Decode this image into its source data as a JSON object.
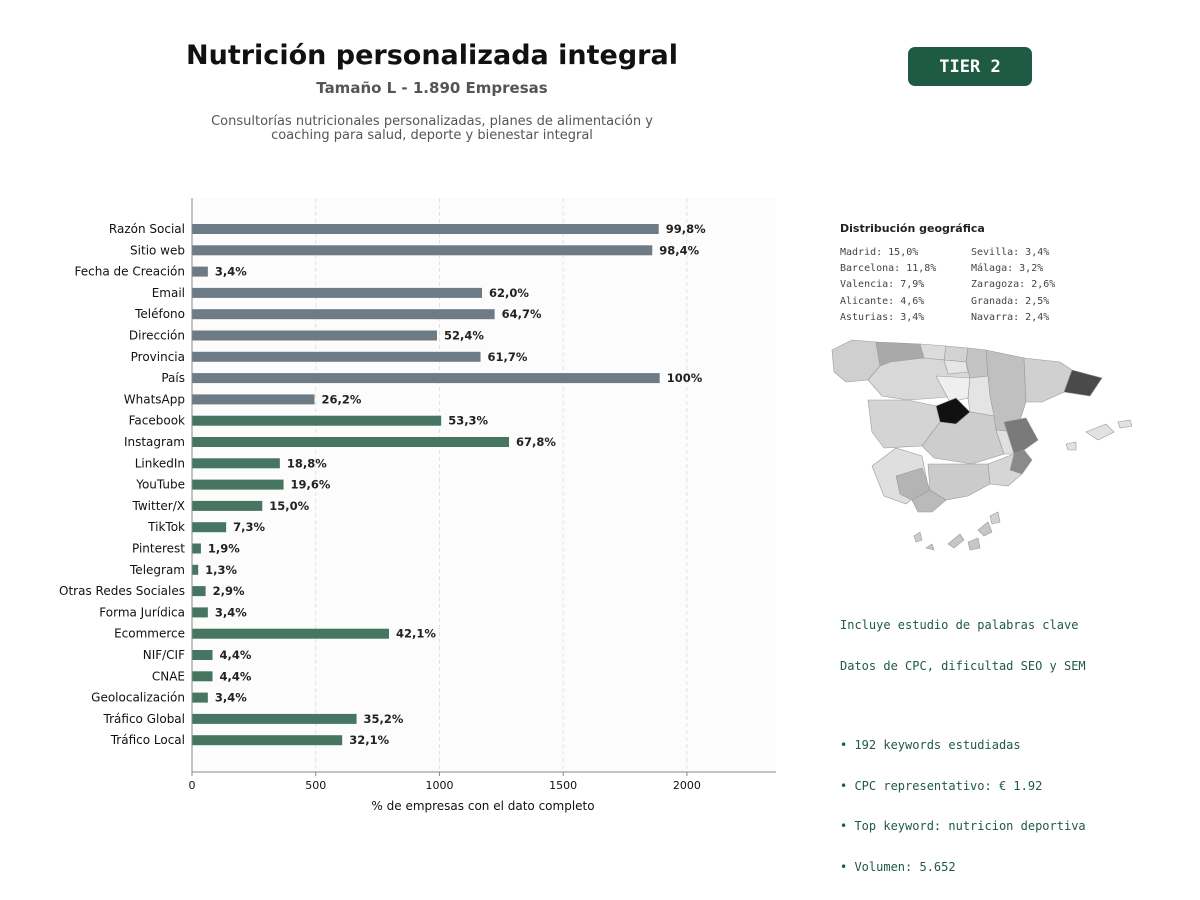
{
  "header": {
    "title": "Nutrición personalizada integral",
    "subtitle": "Tamaño L - 1.890 Empresas",
    "description_line1": "Consultorías nutricionales personalizadas, planes de alimentación y",
    "description_line2": "coaching para salud, deporte y bienestar integral",
    "tier": "TIER 2"
  },
  "colors": {
    "bar_gray": "#6e7b85",
    "bar_green": "#467562",
    "tier_bg": "#1f5a44",
    "keyword_text": "#1f5a44",
    "plot_bg": "#fcfcfc"
  },
  "chart_data": {
    "type": "bar",
    "orientation": "horizontal",
    "xlabel": "% de empresas con el dato completo",
    "xlim": [
      0,
      2360
    ],
    "xticks": [
      0,
      500,
      1000,
      1500,
      2000
    ],
    "grid": true,
    "categories": [
      "Razón Social",
      "Sitio web",
      "Fecha de Creación",
      "Email",
      "Teléfono",
      "Dirección",
      "Provincia",
      "País",
      "WhatsApp",
      "Facebook",
      "Instagram",
      "LinkedIn",
      "YouTube",
      "Twitter/X",
      "TikTok",
      "Pinterest",
      "Telegram",
      "Otras Redes Sociales",
      "Forma Jurídica",
      "Ecommerce",
      "NIF/CIF",
      "CNAE",
      "Geolocalización",
      "Tráfico Global",
      "Tráfico Local"
    ],
    "values": [
      1886,
      1860,
      64,
      1172,
      1223,
      990,
      1166,
      1890,
      495,
      1007,
      1281,
      355,
      370,
      284,
      138,
      36,
      25,
      55,
      64,
      796,
      83,
      83,
      64,
      665,
      607
    ],
    "labels": [
      "99,8%",
      "98,4%",
      "3,4%",
      "62,0%",
      "64,7%",
      "52,4%",
      "61,7%",
      "100%",
      "26,2%",
      "53,3%",
      "67,8%",
      "18,8%",
      "19,6%",
      "15,0%",
      "7,3%",
      "1,9%",
      "1,3%",
      "2,9%",
      "3,4%",
      "42,1%",
      "4,4%",
      "4,4%",
      "3,4%",
      "35,2%",
      "32,1%"
    ],
    "bar_colors": [
      "#6e7b85",
      "#6e7b85",
      "#6e7b85",
      "#6e7b85",
      "#6e7b85",
      "#6e7b85",
      "#6e7b85",
      "#6e7b85",
      "#6e7b85",
      "#467562",
      "#467562",
      "#467562",
      "#467562",
      "#467562",
      "#467562",
      "#467562",
      "#467562",
      "#467562",
      "#467562",
      "#467562",
      "#467562",
      "#467562",
      "#467562",
      "#467562",
      "#467562"
    ]
  },
  "geo": {
    "title": "Distribución geográfica",
    "items": [
      "Madrid: 15,0%",
      "Sevilla: 3,4%",
      "Barcelona: 11,8%",
      "Málaga: 3,2%",
      "Valencia: 7,9%",
      "Zaragoza: 2,6%",
      "Alicante: 4,6%",
      "Granada: 2,5%",
      "Asturias: 3,4%",
      "Navarra: 2,4%"
    ]
  },
  "keywords": {
    "line1": "Incluye estudio de palabras clave",
    "line2": "Datos de CPC, dificultad SEO y SEM",
    "bullets": [
      "• 192 keywords estudiadas",
      "• CPC representativo: € 1.92",
      "• Top keyword: nutricion deportiva",
      "• Volumen: 5.652"
    ]
  }
}
